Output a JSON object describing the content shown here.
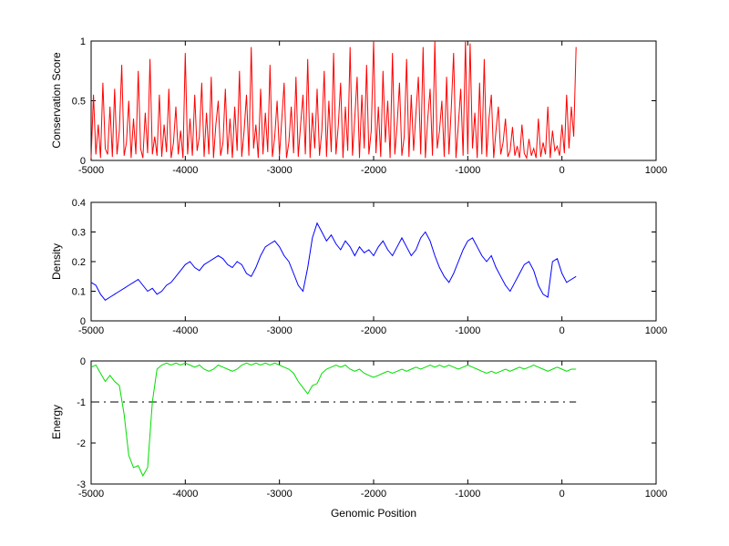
{
  "figure": {
    "background": "#ffffff"
  },
  "chart_data": [
    {
      "id": "conservation",
      "type": "line",
      "ylabel": "Conservation Score",
      "xlabel": "",
      "xlim": [
        -5000,
        1000
      ],
      "ylim": [
        0,
        1
      ],
      "xticks": [
        -5000,
        -4000,
        -3000,
        -2000,
        -1000,
        0,
        1000
      ],
      "yticks": [
        0,
        0.5,
        1
      ],
      "grid": false,
      "legend": "none",
      "series": [
        {
          "name": "conservation-score",
          "color": "#ff0000",
          "x_start": -5000,
          "x_step": 25,
          "values": [
            0.02,
            0.55,
            0.05,
            0.3,
            0.02,
            0.65,
            0.1,
            0.05,
            0.45,
            0.03,
            0.6,
            0.05,
            0.25,
            0.8,
            0.04,
            0.15,
            0.5,
            0.02,
            0.35,
            0.05,
            0.75,
            0.1,
            0.02,
            0.4,
            0.06,
            0.85,
            0.05,
            0.2,
            0.04,
            0.55,
            0.03,
            0.3,
            0.07,
            0.6,
            0.02,
            0.15,
            0.45,
            0.05,
            0.25,
            0.02,
            0.9,
            0.05,
            0.35,
            0.04,
            0.55,
            0.08,
            0.2,
            0.65,
            0.03,
            0.4,
            0.05,
            0.7,
            0.02,
            0.3,
            0.5,
            0.04,
            0.15,
            0.6,
            0.05,
            0.35,
            0.02,
            0.45,
            0.08,
            0.75,
            0.03,
            0.25,
            0.55,
            0.04,
            0.95,
            0.1,
            0.3,
            0.02,
            0.6,
            0.05,
            0.4,
            0.07,
            0.8,
            0.03,
            0.2,
            0.5,
            0.04,
            0.35,
            0.65,
            0.02,
            0.15,
            0.45,
            0.06,
            0.7,
            0.03,
            0.3,
            0.55,
            0.05,
            0.85,
            0.02,
            0.4,
            0.1,
            0.6,
            0.04,
            0.25,
            0.75,
            0.03,
            0.5,
            0.07,
            0.9,
            0.05,
            0.3,
            0.65,
            0.02,
            0.45,
            0.08,
            0.95,
            0.04,
            0.35,
            0.7,
            0.02,
            0.55,
            0.1,
            0.8,
            0.05,
            0.25,
            1.0,
            0.06,
            0.45,
            0.03,
            0.75,
            0.15,
            0.5,
            0.02,
            0.9,
            0.05,
            0.3,
            0.65,
            0.04,
            0.2,
            0.85,
            0.03,
            0.55,
            0.08,
            0.4,
            0.7,
            0.05,
            0.95,
            0.02,
            0.35,
            0.6,
            0.04,
            1.0,
            0.1,
            0.25,
            0.5,
            0.03,
            0.7,
            0.05,
            0.45,
            0.9,
            0.02,
            0.3,
            0.6,
            0.04,
            1.0,
            0.05,
            0.98,
            0.1,
            0.4,
            0.02,
            0.65,
            0.05,
            0.85,
            0.03,
            0.35,
            0.55,
            0.02,
            0.25,
            0.45,
            0.05,
            0.15,
            0.35,
            0.03,
            0.08,
            0.28,
            0.04,
            0.12,
            0.02,
            0.3,
            0.06,
            0.02,
            0.18,
            0.04,
            0.1,
            0.02,
            0.35,
            0.03,
            0.15,
            0.05,
            0.45,
            0.02,
            0.25,
            0.08,
            0.12,
            0.04,
            0.3,
            0.06,
            0.55,
            0.1,
            0.45,
            0.2,
            0.95
          ]
        }
      ]
    },
    {
      "id": "density",
      "type": "line",
      "ylabel": "Density",
      "xlabel": "",
      "xlim": [
        -5000,
        1000
      ],
      "ylim": [
        0,
        0.4
      ],
      "xticks": [
        -5000,
        -4000,
        -3000,
        -2000,
        -1000,
        0,
        1000
      ],
      "yticks": [
        0,
        0.1,
        0.2,
        0.3,
        0.4
      ],
      "grid": false,
      "legend": "none",
      "series": [
        {
          "name": "density",
          "color": "#0000ff",
          "x_start": -5000,
          "x_step": 50,
          "values": [
            0.13,
            0.12,
            0.09,
            0.07,
            0.08,
            0.09,
            0.1,
            0.11,
            0.12,
            0.13,
            0.14,
            0.12,
            0.1,
            0.11,
            0.09,
            0.1,
            0.12,
            0.13,
            0.15,
            0.17,
            0.19,
            0.2,
            0.18,
            0.17,
            0.19,
            0.2,
            0.21,
            0.22,
            0.21,
            0.19,
            0.18,
            0.2,
            0.19,
            0.16,
            0.15,
            0.18,
            0.22,
            0.25,
            0.26,
            0.27,
            0.25,
            0.22,
            0.2,
            0.16,
            0.12,
            0.1,
            0.18,
            0.28,
            0.33,
            0.3,
            0.27,
            0.29,
            0.26,
            0.24,
            0.27,
            0.25,
            0.22,
            0.25,
            0.23,
            0.24,
            0.22,
            0.25,
            0.27,
            0.24,
            0.22,
            0.25,
            0.28,
            0.25,
            0.22,
            0.24,
            0.28,
            0.3,
            0.27,
            0.22,
            0.18,
            0.15,
            0.13,
            0.16,
            0.2,
            0.24,
            0.27,
            0.28,
            0.25,
            0.22,
            0.2,
            0.22,
            0.18,
            0.15,
            0.12,
            0.1,
            0.13,
            0.16,
            0.19,
            0.2,
            0.17,
            0.12,
            0.09,
            0.08,
            0.2,
            0.21,
            0.16,
            0.13,
            0.14,
            0.15
          ]
        }
      ]
    },
    {
      "id": "energy",
      "type": "line",
      "ylabel": "Energy",
      "xlabel": "Genomic Position",
      "xlim": [
        -5000,
        1000
      ],
      "ylim": [
        -3,
        0
      ],
      "xticks": [
        -5000,
        -4000,
        -3000,
        -2000,
        -1000,
        0,
        1000
      ],
      "yticks": [
        -3,
        -2,
        -1,
        0
      ],
      "grid": false,
      "legend": "none",
      "reference_lines": [
        {
          "y": -1,
          "color": "#000000",
          "style": "dash-dot",
          "x_start": -5000,
          "x_end": 150
        }
      ],
      "series": [
        {
          "name": "energy",
          "color": "#00dd00",
          "x_start": -5000,
          "x_step": 50,
          "values": [
            -0.15,
            -0.1,
            -0.3,
            -0.5,
            -0.35,
            -0.5,
            -0.6,
            -1.3,
            -2.3,
            -2.6,
            -2.55,
            -2.8,
            -2.6,
            -1.0,
            -0.2,
            -0.1,
            -0.05,
            -0.1,
            -0.05,
            -0.1,
            -0.05,
            -0.1,
            -0.15,
            -0.1,
            -0.2,
            -0.25,
            -0.2,
            -0.1,
            -0.15,
            -0.2,
            -0.25,
            -0.2,
            -0.1,
            -0.05,
            -0.1,
            -0.05,
            -0.1,
            -0.05,
            -0.1,
            -0.05,
            -0.1,
            -0.15,
            -0.2,
            -0.3,
            -0.5,
            -0.65,
            -0.8,
            -0.6,
            -0.55,
            -0.3,
            -0.2,
            -0.15,
            -0.1,
            -0.15,
            -0.1,
            -0.2,
            -0.25,
            -0.2,
            -0.3,
            -0.35,
            -0.4,
            -0.35,
            -0.3,
            -0.25,
            -0.3,
            -0.25,
            -0.2,
            -0.25,
            -0.2,
            -0.15,
            -0.2,
            -0.15,
            -0.1,
            -0.15,
            -0.1,
            -0.15,
            -0.1,
            -0.15,
            -0.2,
            -0.15,
            -0.1,
            -0.15,
            -0.2,
            -0.25,
            -0.3,
            -0.25,
            -0.3,
            -0.25,
            -0.2,
            -0.25,
            -0.2,
            -0.15,
            -0.2,
            -0.15,
            -0.1,
            -0.15,
            -0.2,
            -0.25,
            -0.2,
            -0.15,
            -0.2,
            -0.25,
            -0.2,
            -0.2
          ]
        }
      ]
    }
  ]
}
